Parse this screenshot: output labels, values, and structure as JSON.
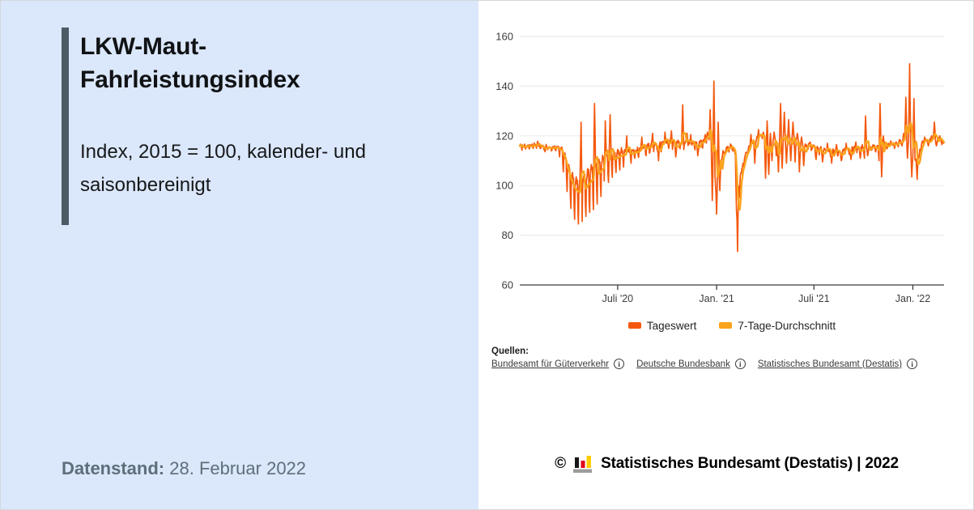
{
  "panel_left": {
    "background": "#dbe7fa",
    "accent_bar_color": "#4e5b66",
    "title_line1": "LKW-Maut-",
    "title_line2": "Fahrleistungsindex",
    "subtitle_line1": "Index, 2015 = 100, kalender- und",
    "subtitle_line2": "saisonbereinigt",
    "datenstand_label": "Datenstand:",
    "datenstand_value": "28. Februar 2022"
  },
  "chart_data": {
    "type": "line",
    "title": "LKW-Maut-Fahrleistungsindex, Index 2015 = 100, kalender- und saisonbereinigt",
    "ylabel": "Index, 2015 = 100",
    "xlabel": "",
    "grid": "horizontal",
    "legend_position": "bottom",
    "y_ticks": [
      60,
      80,
      100,
      120,
      140,
      160
    ],
    "ylim": [
      60,
      165
    ],
    "x_range_days": [
      0,
      789
    ],
    "x_ticks": [
      {
        "label": "Juli '20",
        "day": 182
      },
      {
        "label": "Jan. '21",
        "day": 366
      },
      {
        "label": "Juli '21",
        "day": 547
      },
      {
        "label": "Jan. '22",
        "day": 731
      }
    ],
    "series": [
      {
        "name": "Tageswert",
        "color": "#F4590E",
        "width": 1.7
      },
      {
        "name": "7-Tage-Durchschnitt",
        "color": "#FBA31C",
        "width": 2.4,
        "derived": "rolling-7-day-mean"
      }
    ],
    "avg_keyframes": [
      [
        0,
        115.8
      ],
      [
        14,
        115.5
      ],
      [
        28,
        116.2
      ],
      [
        42,
        115.6
      ],
      [
        56,
        115.2
      ],
      [
        70,
        115.0
      ],
      [
        78,
        113.5
      ],
      [
        86,
        108
      ],
      [
        94,
        101.5
      ],
      [
        103,
        97.5
      ],
      [
        110,
        96.8
      ],
      [
        118,
        98
      ],
      [
        126,
        100
      ],
      [
        134,
        102.5
      ],
      [
        142,
        104
      ],
      [
        150,
        106
      ],
      [
        160,
        108.5
      ],
      [
        170,
        110
      ],
      [
        182,
        111.5
      ],
      [
        196,
        112.5
      ],
      [
        210,
        113
      ],
      [
        225,
        114
      ],
      [
        240,
        115.2
      ],
      [
        255,
        116
      ],
      [
        270,
        116.8
      ],
      [
        285,
        117
      ],
      [
        300,
        116.8
      ],
      [
        315,
        116.2
      ],
      [
        330,
        116.8
      ],
      [
        342,
        117.5
      ],
      [
        350,
        119
      ],
      [
        356,
        116
      ],
      [
        362,
        109
      ],
      [
        366,
        105.5
      ],
      [
        371,
        107.5
      ],
      [
        378,
        112.5
      ],
      [
        386,
        115
      ],
      [
        394,
        115.8
      ],
      [
        400,
        113
      ],
      [
        406,
        104
      ],
      [
        412,
        105
      ],
      [
        418,
        111
      ],
      [
        426,
        115.5
      ],
      [
        434,
        117
      ],
      [
        442,
        118.5
      ],
      [
        450,
        119.8
      ],
      [
        456,
        118
      ],
      [
        462,
        113.5
      ],
      [
        468,
        116.5
      ],
      [
        476,
        118
      ],
      [
        484,
        117
      ],
      [
        492,
        118.8
      ],
      [
        500,
        117.5
      ],
      [
        508,
        118.2
      ],
      [
        516,
        118.5
      ],
      [
        522,
        116.5
      ],
      [
        528,
        115.5
      ],
      [
        536,
        116
      ],
      [
        547,
        115.3
      ],
      [
        558,
        114.3
      ],
      [
        570,
        113.8
      ],
      [
        582,
        113.5
      ],
      [
        594,
        113.2
      ],
      [
        606,
        113.8
      ],
      [
        620,
        114.5
      ],
      [
        634,
        115
      ],
      [
        648,
        115.3
      ],
      [
        662,
        115.5
      ],
      [
        676,
        115.8
      ],
      [
        690,
        116
      ],
      [
        702,
        116.5
      ],
      [
        712,
        117.5
      ],
      [
        720,
        119.5
      ],
      [
        726,
        117
      ],
      [
        731,
        112
      ],
      [
        736,
        110
      ],
      [
        741,
        113
      ],
      [
        748,
        116.5
      ],
      [
        756,
        118
      ],
      [
        764,
        118
      ],
      [
        772,
        118.5
      ],
      [
        780,
        118
      ],
      [
        789,
        117.3
      ]
    ],
    "weekly_amplitude_keyframes": [
      [
        0,
        1.5
      ],
      [
        70,
        1.5
      ],
      [
        80,
        8
      ],
      [
        90,
        16
      ],
      [
        100,
        19
      ],
      [
        115,
        20
      ],
      [
        130,
        21
      ],
      [
        145,
        19
      ],
      [
        158,
        15
      ],
      [
        170,
        12
      ],
      [
        182,
        10
      ],
      [
        195,
        7
      ],
      [
        210,
        5
      ],
      [
        230,
        4.5
      ],
      [
        260,
        4
      ],
      [
        300,
        3.5
      ],
      [
        340,
        3
      ],
      [
        370,
        3
      ],
      [
        400,
        2.5
      ],
      [
        440,
        2.5
      ],
      [
        530,
        2.5
      ],
      [
        789,
        2.2
      ]
    ],
    "weekly_dip_pattern": [
      0,
      0.1,
      0.05,
      0.65,
      0.9,
      0.2,
      0.1
    ],
    "noise_amplitude": 0.7,
    "daily_events": [
      [
        33,
        117.8
      ],
      [
        47,
        113.6
      ],
      [
        114,
        125.5
      ],
      [
        139,
        133
      ],
      [
        159,
        126
      ],
      [
        168,
        128.5
      ],
      [
        199,
        120
      ],
      [
        227,
        119.5
      ],
      [
        247,
        121
      ],
      [
        258,
        110
      ],
      [
        270,
        121.5
      ],
      [
        282,
        122
      ],
      [
        290,
        111.5
      ],
      [
        303,
        132.5
      ],
      [
        311,
        121
      ],
      [
        318,
        120.5
      ],
      [
        331,
        112
      ],
      [
        345,
        120.5
      ],
      [
        349,
        121.5
      ],
      [
        354,
        130.5
      ],
      [
        358,
        94
      ],
      [
        361,
        142
      ],
      [
        364,
        100
      ],
      [
        366,
        88.5
      ],
      [
        369,
        125.5
      ],
      [
        372,
        98
      ],
      [
        375,
        110
      ],
      [
        403,
        90
      ],
      [
        405,
        73.5
      ],
      [
        408,
        95
      ],
      [
        430,
        120.5
      ],
      [
        437,
        109
      ],
      [
        444,
        122.5
      ],
      [
        453,
        121.5
      ],
      [
        457,
        103
      ],
      [
        460,
        126
      ],
      [
        463,
        104.5
      ],
      [
        466,
        121
      ],
      [
        469,
        110
      ],
      [
        473,
        121.5
      ],
      [
        477,
        112
      ],
      [
        481,
        105.5
      ],
      [
        485,
        133
      ],
      [
        488,
        107
      ],
      [
        492,
        129.5
      ],
      [
        496,
        109
      ],
      [
        500,
        126.5
      ],
      [
        504,
        110
      ],
      [
        508,
        125.5
      ],
      [
        512,
        109.5
      ],
      [
        516,
        121
      ],
      [
        520,
        105.5
      ],
      [
        524,
        119.5
      ],
      [
        528,
        108
      ],
      [
        540,
        117.5
      ],
      [
        551,
        110.5
      ],
      [
        563,
        109.5
      ],
      [
        572,
        117
      ],
      [
        580,
        109
      ],
      [
        589,
        116.5
      ],
      [
        598,
        110
      ],
      [
        607,
        117
      ],
      [
        616,
        110.5
      ],
      [
        625,
        117.5
      ],
      [
        633,
        111
      ],
      [
        641,
        111
      ],
      [
        643,
        128
      ],
      [
        647,
        112
      ],
      [
        668,
        110
      ],
      [
        670,
        133
      ],
      [
        673,
        103.5
      ],
      [
        676,
        120
      ],
      [
        690,
        118
      ],
      [
        700,
        117.5
      ],
      [
        706,
        118.5
      ],
      [
        714,
        121
      ],
      [
        718,
        135.5
      ],
      [
        721,
        111
      ],
      [
        725,
        149
      ],
      [
        729,
        103.5
      ],
      [
        733,
        135
      ],
      [
        736,
        110
      ],
      [
        739,
        102.5
      ],
      [
        742,
        111
      ],
      [
        745,
        114
      ],
      [
        753,
        119.5
      ],
      [
        760,
        116
      ],
      [
        766,
        120
      ],
      [
        771,
        125.5
      ],
      [
        775,
        116
      ],
      [
        781,
        120
      ],
      [
        785,
        116.5
      ],
      [
        789,
        117.5
      ]
    ],
    "colors": {
      "grid": "#ebebeb",
      "axis": "#3c3c3c",
      "tick_label": "#3c3c3c"
    }
  },
  "legend": [
    {
      "label": "Tageswert",
      "color": "#F4590E"
    },
    {
      "label": "7-Tage-Durchschnitt",
      "color": "#FBA31C"
    }
  ],
  "sources": {
    "label": "Quellen:",
    "items": [
      "Bundesamt für Güterverkehr",
      "Deutsche Bundesbank",
      "Statistisches Bundesamt (Destatis)"
    ]
  },
  "footer": {
    "copyright": "©",
    "text": "Statistisches Bundesamt (Destatis) | 2022",
    "logo_colors": {
      "bar1": "#161615",
      "bar2": "#e10019",
      "bar3": "#ffcc00",
      "base": "#9c9c9c"
    }
  }
}
